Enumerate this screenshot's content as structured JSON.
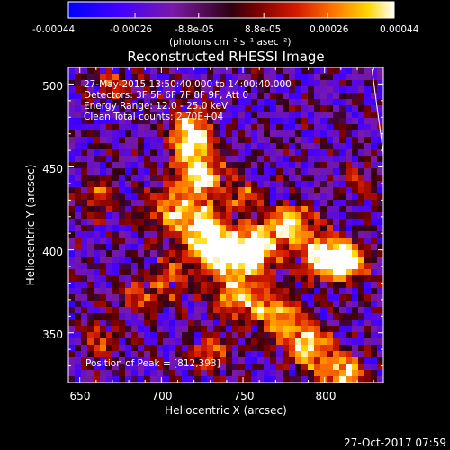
{
  "colorbar": {
    "tick_labels": [
      "-0.00044",
      "-0.00026",
      "-8.8e-05",
      "8.8e-05",
      "0.00026",
      "0.00044"
    ],
    "tick_values": [
      -0.00044,
      -0.00026,
      -8.8e-05,
      8.8e-05,
      0.00026,
      0.00044
    ],
    "range": [
      -0.00044,
      0.00044
    ],
    "units_text": "(photons cm⁻² s⁻¹ asec⁻²)",
    "colors": [
      "#0000ff",
      "#4400ff",
      "#7a1aa8",
      "#300010",
      "#7a0000",
      "#d41a00",
      "#ff7a00",
      "#ffd700",
      "#ffffff"
    ]
  },
  "chart_data": {
    "type": "heatmap",
    "title": "Reconstructed RHESSI Image",
    "xlabel": "Heliocentric X (arcsec)",
    "ylabel": "Heliocentric Y (arcsec)",
    "xlim": [
      643,
      836
    ],
    "ylim": [
      320,
      510
    ],
    "x_ticks": [
      650,
      700,
      750,
      800
    ],
    "y_ticks": [
      350,
      400,
      450,
      500
    ],
    "annotations": [
      "27-May-2015 13:50:40.000 to 14:00:40.000",
      "Detectors: 3F 5F 6F 7F 8F 9F, Att 0",
      "Energy Range: 12.0 - 25.0 keV",
      "Clean     Total counts: 2.70E+04"
    ],
    "peak_label": "Position of Peak = [812,393]",
    "peak": [
      812,
      393
    ],
    "limb_line": [
      [
        829,
        509
      ],
      [
        836,
        458
      ]
    ],
    "blobs": [
      {
        "x": 718,
        "y": 468,
        "sx": 9,
        "sy": 13,
        "a": 1.0
      },
      {
        "x": 726,
        "y": 444,
        "sx": 10,
        "sy": 8,
        "a": 0.8
      },
      {
        "x": 708,
        "y": 424,
        "sx": 12,
        "sy": 10,
        "a": 0.7
      },
      {
        "x": 728,
        "y": 410,
        "sx": 10,
        "sy": 12,
        "a": 0.9
      },
      {
        "x": 742,
        "y": 396,
        "sx": 12,
        "sy": 9,
        "a": 0.9
      },
      {
        "x": 760,
        "y": 402,
        "sx": 10,
        "sy": 10,
        "a": 0.85
      },
      {
        "x": 780,
        "y": 416,
        "sx": 9,
        "sy": 8,
        "a": 0.95
      },
      {
        "x": 798,
        "y": 396,
        "sx": 10,
        "sy": 9,
        "a": 0.9
      },
      {
        "x": 812,
        "y": 393,
        "sx": 8,
        "sy": 8,
        "a": 1.15
      },
      {
        "x": 748,
        "y": 372,
        "sx": 12,
        "sy": 9,
        "a": 0.75
      },
      {
        "x": 772,
        "y": 360,
        "sx": 10,
        "sy": 9,
        "a": 0.7
      },
      {
        "x": 790,
        "y": 342,
        "sx": 10,
        "sy": 10,
        "a": 0.85
      },
      {
        "x": 812,
        "y": 326,
        "sx": 9,
        "sy": 8,
        "a": 0.9
      },
      {
        "x": 752,
        "y": 432,
        "sx": 7,
        "sy": 6,
        "a": 0.55
      },
      {
        "x": 704,
        "y": 384,
        "sx": 8,
        "sy": 10,
        "a": 0.5
      },
      {
        "x": 662,
        "y": 432,
        "sx": 8,
        "sy": 9,
        "a": 0.45
      },
      {
        "x": 672,
        "y": 500,
        "sx": 9,
        "sy": 7,
        "a": 0.5
      },
      {
        "x": 686,
        "y": 372,
        "sx": 7,
        "sy": 7,
        "a": 0.5
      },
      {
        "x": 664,
        "y": 346,
        "sx": 8,
        "sy": 9,
        "a": 0.45
      },
      {
        "x": 728,
        "y": 338,
        "sx": 9,
        "sy": 8,
        "a": 0.5
      },
      {
        "x": 822,
        "y": 440,
        "sx": 7,
        "sy": 8,
        "a": 0.4
      }
    ]
  },
  "footer": {
    "timestamp": "27-Oct-2017 07:59"
  }
}
